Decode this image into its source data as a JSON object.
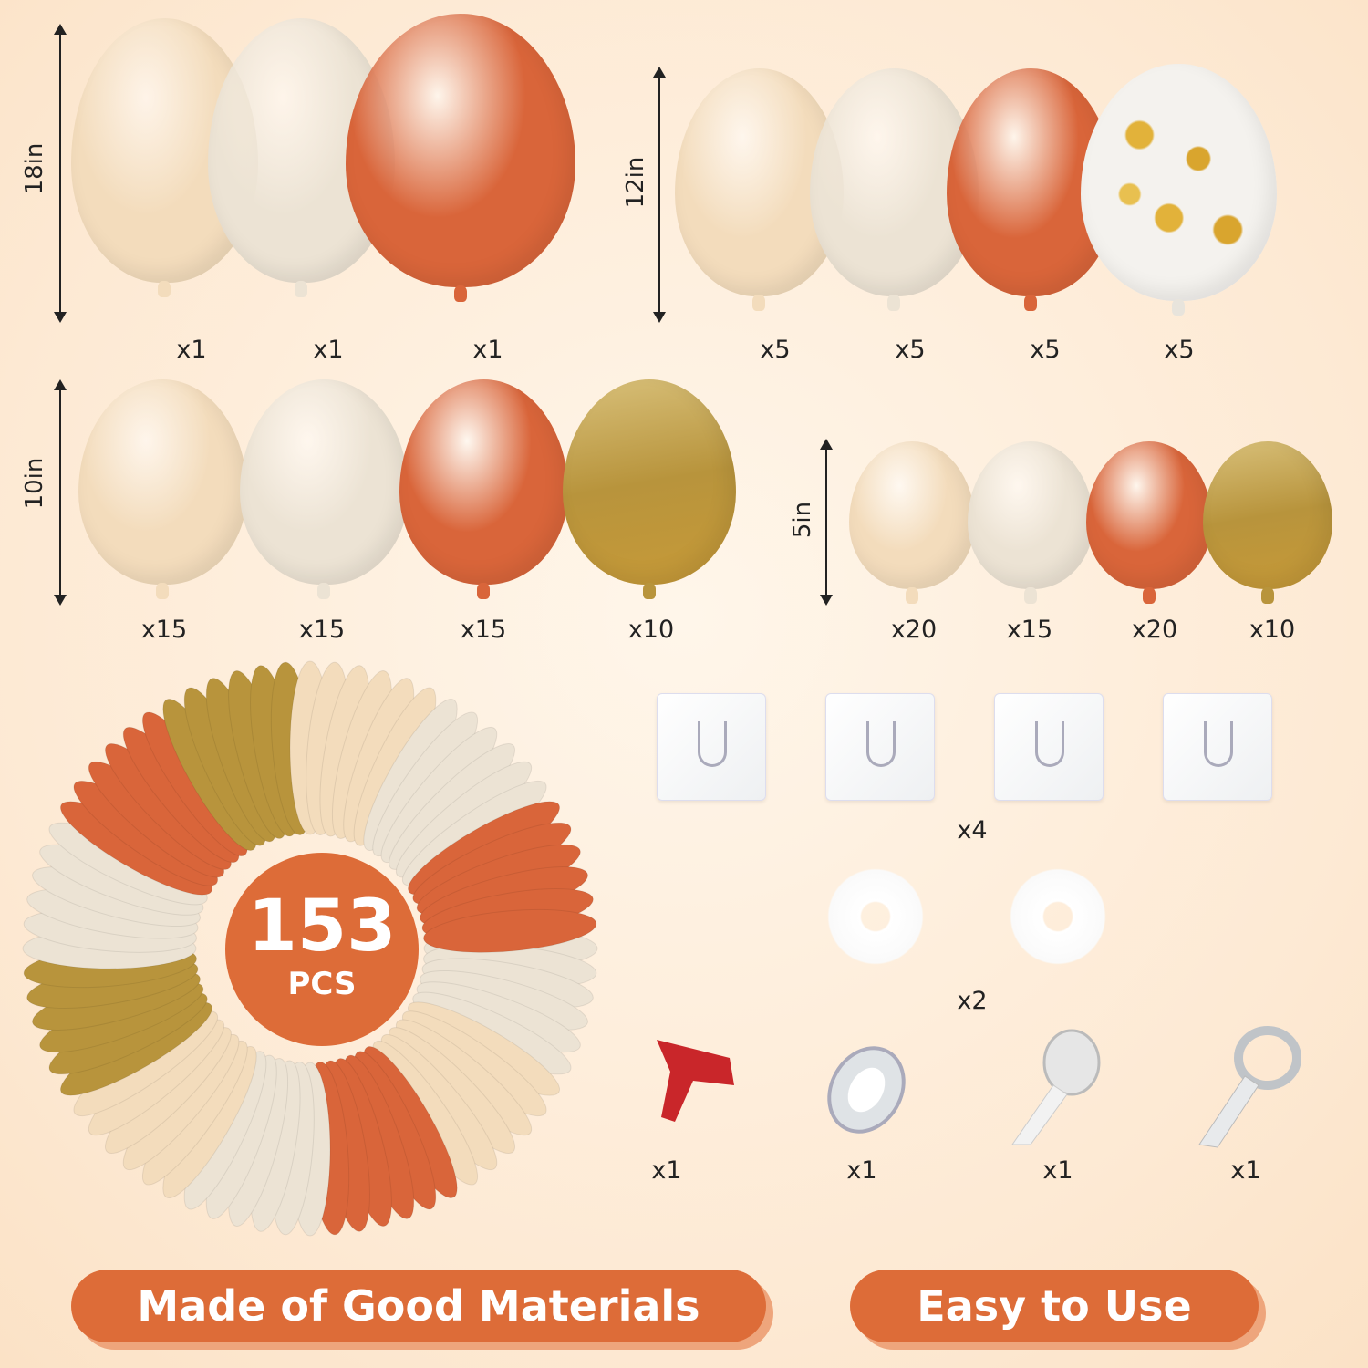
{
  "colors": {
    "nude": "#f3dcbc",
    "sand": "#ece3d4",
    "orange": "#d9653a",
    "gold": "#b8943c",
    "confetti": "#f4f2ee",
    "accent": "#dd6c38"
  },
  "groups": [
    {
      "size": "18in",
      "balloons": [
        {
          "color": "nude",
          "count": "x1"
        },
        {
          "color": "sand",
          "count": "x1"
        },
        {
          "color": "orange",
          "count": "x1"
        }
      ]
    },
    {
      "size": "12in",
      "balloons": [
        {
          "color": "nude",
          "count": "x5"
        },
        {
          "color": "sand",
          "count": "x5"
        },
        {
          "color": "orange",
          "count": "x5"
        },
        {
          "color": "confetti",
          "count": "x5"
        }
      ]
    },
    {
      "size": "10in",
      "balloons": [
        {
          "color": "nude",
          "count": "x15"
        },
        {
          "color": "sand",
          "count": "x15"
        },
        {
          "color": "orange",
          "count": "x15"
        },
        {
          "color": "gold",
          "count": "x10"
        }
      ]
    },
    {
      "size": "5in",
      "balloons": [
        {
          "color": "nude",
          "count": "x20"
        },
        {
          "color": "sand",
          "count": "x15"
        },
        {
          "color": "orange",
          "count": "x20"
        },
        {
          "color": "gold",
          "count": "x10"
        }
      ]
    }
  ],
  "total": {
    "number": "153",
    "unit": "PCS"
  },
  "accessories": {
    "hooks_count": "x4",
    "clips_count": "x2",
    "tyer_count": "x1",
    "ribbon_count": "x1",
    "glue_dots_count": "x1",
    "strip_count": "x1"
  },
  "banners": {
    "left": "Made of Good Materials",
    "right": "Easy to Use"
  }
}
